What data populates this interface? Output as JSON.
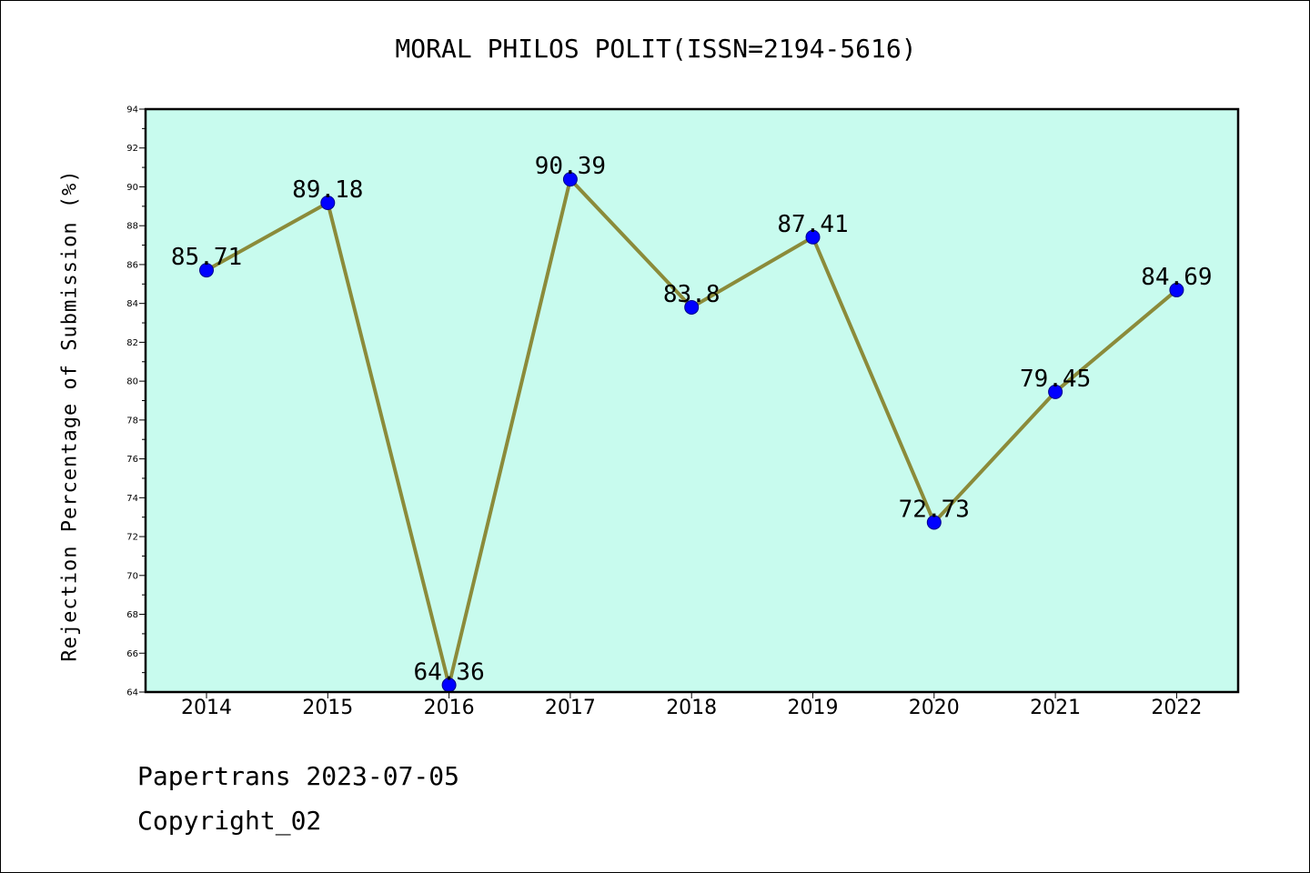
{
  "title": "MORAL PHILOS POLIT(ISSN=2194-5616)",
  "footer": {
    "line1": "Papertrans 2023-07-05",
    "line2": "Copyright_02"
  },
  "colors": {
    "plot_background": "#c8fbee",
    "line": "#8b8b3a",
    "marker": "#0000ff",
    "marker_edge": "#00008b"
  },
  "chart_data": {
    "type": "line",
    "title": "MORAL PHILOS POLIT(ISSN=2194-5616)",
    "xlabel": "",
    "ylabel": "Rejection Percentage of Submission (%)",
    "categories": [
      "2014",
      "2015",
      "2016",
      "2017",
      "2018",
      "2019",
      "2020",
      "2021",
      "2022"
    ],
    "series": [
      {
        "values": [
          85.71,
          89.18,
          64.36,
          90.39,
          83.8,
          87.41,
          72.73,
          79.45,
          84.69
        ],
        "labels": [
          "85.71",
          "89.18",
          "64.36",
          "90.39",
          "83.8",
          "87.41",
          "72.73",
          "79.45",
          "84.69"
        ]
      }
    ],
    "ylim": [
      64,
      94
    ],
    "yticks": [
      "64",
      "66",
      "68",
      "70",
      "72",
      "74",
      "76",
      "78",
      "80",
      "82",
      "84",
      "86",
      "88",
      "90",
      "92",
      "94"
    ],
    "grid": false,
    "legend": "none"
  }
}
